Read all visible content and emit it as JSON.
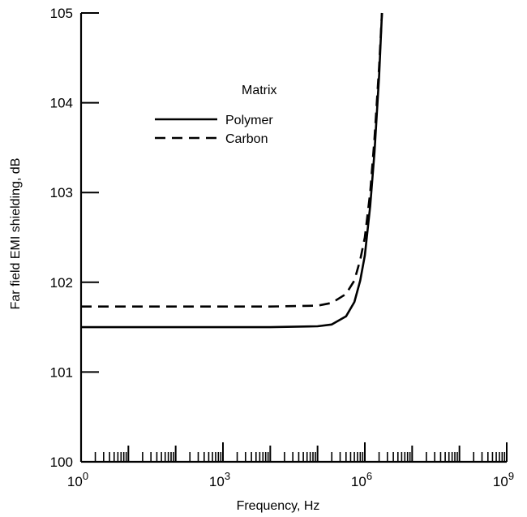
{
  "chart_data": {
    "type": "line",
    "title": "",
    "xlabel": "Frequency, Hz",
    "ylabel": "Far field EMI shielding, dB",
    "xscale": "log",
    "xlim": [
      1,
      1000000000
    ],
    "ylim": [
      100,
      105
    ],
    "x_ticks": [
      {
        "base": "10",
        "exp": "0"
      },
      {
        "base": "10",
        "exp": "3"
      },
      {
        "base": "10",
        "exp": "6"
      },
      {
        "base": "10",
        "exp": "9"
      }
    ],
    "y_ticks": [
      "100",
      "101",
      "102",
      "103",
      "104",
      "105"
    ],
    "grid": false,
    "legend": {
      "title": "Matrix",
      "position": "top-center",
      "entries": [
        {
          "label": "Polymer",
          "style": "solid"
        },
        {
          "label": "Carbon",
          "style": "dashed"
        }
      ]
    },
    "series": [
      {
        "name": "Polymer",
        "style": "solid",
        "color": "#000000",
        "points": [
          [
            1,
            101.5
          ],
          [
            10,
            101.5
          ],
          [
            100,
            101.5
          ],
          [
            1000,
            101.5
          ],
          [
            10000,
            101.5
          ],
          [
            100000,
            101.51
          ],
          [
            200000,
            101.53
          ],
          [
            400000,
            101.62
          ],
          [
            600000,
            101.78
          ],
          [
            800000,
            102.02
          ],
          [
            1000000,
            102.3
          ],
          [
            1300000,
            102.85
          ],
          [
            1600000,
            103.45
          ],
          [
            2000000,
            104.3
          ],
          [
            2300000,
            105.0
          ]
        ]
      },
      {
        "name": "Carbon",
        "style": "dashed",
        "color": "#000000",
        "points": [
          [
            1,
            101.73
          ],
          [
            10,
            101.73
          ],
          [
            100,
            101.73
          ],
          [
            1000,
            101.73
          ],
          [
            10000,
            101.73
          ],
          [
            100000,
            101.74
          ],
          [
            200000,
            101.77
          ],
          [
            400000,
            101.87
          ],
          [
            600000,
            102.02
          ],
          [
            800000,
            102.25
          ],
          [
            1000000,
            102.5
          ],
          [
            1300000,
            103.0
          ],
          [
            1600000,
            103.6
          ],
          [
            2000000,
            104.4
          ],
          [
            2300000,
            105.0
          ]
        ]
      }
    ]
  }
}
